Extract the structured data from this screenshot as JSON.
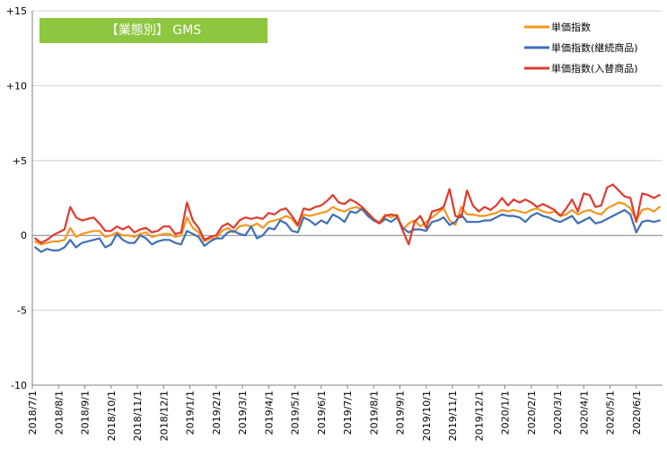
{
  "chart_data": {
    "type": "line",
    "title_box": {
      "label": "【業態別】 GMS",
      "color": "#8dc63f"
    },
    "ylim": [
      -10,
      15
    ],
    "yticks": [
      {
        "value": 15,
        "label": "+15"
      },
      {
        "value": 10,
        "label": "+10"
      },
      {
        "value": 5,
        "label": "+5"
      },
      {
        "value": 0,
        "label": "0"
      },
      {
        "value": -5,
        "label": "-5"
      },
      {
        "value": -10,
        "label": "-10"
      }
    ],
    "xticks": [
      {
        "index": 0,
        "label": "2018/7/1"
      },
      {
        "index": 4.5,
        "label": "2018/8/1"
      },
      {
        "index": 9,
        "label": "2018/9/1"
      },
      {
        "index": 13.5,
        "label": "2018/10/1"
      },
      {
        "index": 18,
        "label": "2018/11/1"
      },
      {
        "index": 22.5,
        "label": "2018/12/1"
      },
      {
        "index": 27,
        "label": "2019/1/1"
      },
      {
        "index": 31.5,
        "label": "2019/2/1"
      },
      {
        "index": 36,
        "label": "2019/3/1"
      },
      {
        "index": 40.5,
        "label": "2019/4/1"
      },
      {
        "index": 45,
        "label": "2019/5/1"
      },
      {
        "index": 49.5,
        "label": "2019/6/1"
      },
      {
        "index": 54,
        "label": "2019/7/1"
      },
      {
        "index": 58.5,
        "label": "2019/8/1"
      },
      {
        "index": 63,
        "label": "2019/9/1"
      },
      {
        "index": 67.5,
        "label": "2019/10/1"
      },
      {
        "index": 72,
        "label": "2019/11/1"
      },
      {
        "index": 76.5,
        "label": "2019/12/1"
      },
      {
        "index": 81,
        "label": "2020/1/1"
      },
      {
        "index": 85.5,
        "label": "2020/2/1"
      },
      {
        "index": 90,
        "label": "2020/3/1"
      },
      {
        "index": 94.5,
        "label": "2020/4/1"
      },
      {
        "index": 99,
        "label": "2020/5/1"
      },
      {
        "index": 103.5,
        "label": "2020/6/1"
      }
    ],
    "x_count": 108,
    "legend_position": "top-right",
    "series": [
      {
        "name": "単価指数",
        "color": "#f5961e",
        "values": [
          -0.4,
          -0.6,
          -0.5,
          -0.4,
          -0.4,
          -0.3,
          0.5,
          -0.1,
          0.1,
          0.2,
          0.3,
          0.3,
          -0.1,
          0.0,
          0.2,
          0.0,
          0.0,
          -0.1,
          0.1,
          0.2,
          -0.1,
          0.0,
          0.1,
          0.1,
          -0.1,
          0.0,
          1.2,
          0.5,
          0.2,
          -0.4,
          -0.2,
          -0.2,
          0.3,
          0.5,
          0.2,
          0.6,
          0.7,
          0.6,
          0.8,
          0.5,
          0.9,
          1.0,
          1.1,
          1.3,
          1.1,
          0.6,
          1.4,
          1.3,
          1.4,
          1.5,
          1.6,
          1.9,
          1.7,
          1.6,
          1.8,
          1.9,
          1.7,
          1.4,
          1.0,
          0.9,
          1.4,
          1.2,
          1.4,
          0.4,
          0.8,
          1.0,
          0.6,
          0.9,
          1.2,
          1.5,
          1.8,
          1.0,
          0.7,
          1.9,
          1.4,
          1.4,
          1.3,
          1.3,
          1.4,
          1.5,
          1.7,
          1.6,
          1.7,
          1.6,
          1.5,
          1.7,
          1.8,
          1.6,
          1.5,
          1.6,
          1.3,
          1.4,
          1.7,
          1.4,
          1.6,
          1.7,
          1.5,
          1.4,
          1.8,
          2.0,
          2.2,
          2.1,
          1.8,
          1.0,
          1.7,
          1.8,
          1.6,
          1.9
        ]
      },
      {
        "name": "単価指数(継続商品)",
        "color": "#3f6fb5",
        "values": [
          -0.8,
          -1.1,
          -0.9,
          -1.0,
          -1.0,
          -0.8,
          -0.3,
          -0.8,
          -0.5,
          -0.4,
          -0.3,
          -0.2,
          -0.8,
          -0.6,
          0.1,
          -0.3,
          -0.5,
          -0.5,
          0.0,
          -0.2,
          -0.6,
          -0.4,
          -0.3,
          -0.3,
          -0.5,
          -0.6,
          0.3,
          0.1,
          -0.1,
          -0.7,
          -0.4,
          -0.2,
          -0.2,
          0.2,
          0.3,
          0.1,
          0.0,
          0.6,
          -0.2,
          0.0,
          0.5,
          0.4,
          1.0,
          0.8,
          0.3,
          0.2,
          1.2,
          1.0,
          0.7,
          1.0,
          0.8,
          1.4,
          1.2,
          0.9,
          1.6,
          1.5,
          1.8,
          1.3,
          1.0,
          0.8,
          1.1,
          0.9,
          1.2,
          0.5,
          0.2,
          0.4,
          0.4,
          0.3,
          0.9,
          1.0,
          1.2,
          0.7,
          0.9,
          1.4,
          0.9,
          0.9,
          0.9,
          1.0,
          1.0,
          1.2,
          1.4,
          1.3,
          1.3,
          1.2,
          0.9,
          1.3,
          1.5,
          1.3,
          1.2,
          1.0,
          0.9,
          1.1,
          1.3,
          0.8,
          1.0,
          1.2,
          0.8,
          0.9,
          1.1,
          1.3,
          1.5,
          1.7,
          1.4,
          0.2,
          0.9,
          1.0,
          0.9,
          1.0
        ]
      },
      {
        "name": "単価指数(入替商品)",
        "color": "#e03a2e",
        "values": [
          -0.2,
          -0.5,
          -0.3,
          0.0,
          0.2,
          0.4,
          1.9,
          1.2,
          1.0,
          1.1,
          1.2,
          0.8,
          0.3,
          0.3,
          0.6,
          0.4,
          0.6,
          0.2,
          0.4,
          0.5,
          0.2,
          0.3,
          0.6,
          0.6,
          0.1,
          0.2,
          2.2,
          1.0,
          0.5,
          -0.3,
          -0.1,
          0.0,
          0.6,
          0.8,
          0.5,
          1.0,
          1.2,
          1.1,
          1.2,
          1.1,
          1.5,
          1.4,
          1.7,
          1.8,
          1.3,
          0.7,
          1.8,
          1.7,
          1.9,
          2.0,
          2.3,
          2.7,
          2.2,
          2.1,
          2.4,
          2.2,
          1.9,
          1.5,
          1.1,
          0.8,
          1.3,
          1.4,
          1.3,
          0.3,
          -0.6,
          0.9,
          1.3,
          0.5,
          1.6,
          1.7,
          1.9,
          3.1,
          1.3,
          1.2,
          3.0,
          2.0,
          1.6,
          1.9,
          1.7,
          2.0,
          2.5,
          2.0,
          2.4,
          2.2,
          2.4,
          2.2,
          1.9,
          2.1,
          1.9,
          1.7,
          1.3,
          1.8,
          2.4,
          1.6,
          2.8,
          2.7,
          1.9,
          2.0,
          3.2,
          3.4,
          3.0,
          2.6,
          2.5,
          0.9,
          2.8,
          2.7,
          2.5,
          2.7
        ]
      }
    ]
  }
}
